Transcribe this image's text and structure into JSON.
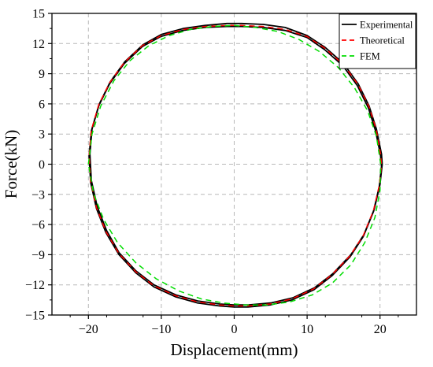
{
  "chart_data": {
    "type": "line",
    "title": "",
    "xlabel": "Displacement(mm)",
    "ylabel": "Force(kN)",
    "xlim": [
      -25,
      25
    ],
    "ylim": [
      -15,
      15
    ],
    "x_ticks": [
      -20,
      -10,
      0,
      10,
      20
    ],
    "y_ticks": [
      -15,
      -12,
      -9,
      -6,
      -3,
      0,
      3,
      6,
      9,
      12,
      15
    ],
    "grid": true,
    "grid_style": "dashed",
    "legend_position": "top-right",
    "series": [
      {
        "name": "Experimental",
        "color": "#000000",
        "dash": "solid",
        "loops": [
          {
            "x": [
              -19.8,
              -19.5,
              -18.5,
              -17.0,
              -15.0,
              -12.5,
              -10.0,
              -7.0,
              -4.0,
              -1.0,
              1.0,
              4.0,
              7.0,
              10.0,
              12.5,
              15.0,
              17.0,
              18.5,
              19.5,
              20.2,
              20.3,
              20.0,
              19.2,
              17.8,
              16.0,
              13.5,
              11.0,
              8.0,
              5.0,
              2.0,
              0.0,
              -2.0,
              -5.0,
              -8.0,
              -11.0,
              -13.5,
              -15.8,
              -17.5,
              -18.8,
              -19.6,
              -19.8
            ],
            "y": [
              1.0,
              3.5,
              6.0,
              8.2,
              10.2,
              11.9,
              12.9,
              13.5,
              13.8,
              14.0,
              14.0,
              13.9,
              13.6,
              12.8,
              11.6,
              10.0,
              8.0,
              5.8,
              3.5,
              1.0,
              0.0,
              -2.0,
              -4.5,
              -7.0,
              -9.0,
              -10.9,
              -12.3,
              -13.3,
              -13.8,
              -14.0,
              -14.0,
              -13.9,
              -13.6,
              -13.0,
              -12.0,
              -10.6,
              -8.8,
              -6.6,
              -4.2,
              -1.6,
              1.0
            ]
          },
          {
            "x": [
              -19.9,
              -19.6,
              -18.6,
              -17.1,
              -15.1,
              -12.6,
              -10.1,
              -7.1,
              -4.1,
              -1.0,
              1.0,
              4.0,
              7.0,
              10.0,
              12.4,
              14.9,
              16.9,
              18.4,
              19.4,
              20.1,
              20.2,
              19.9,
              19.1,
              17.7,
              15.9,
              13.4,
              10.9,
              7.9,
              4.9,
              1.9,
              0.0,
              -2.0,
              -5.0,
              -8.0,
              -11.0,
              -13.5,
              -15.8,
              -17.6,
              -18.9,
              -19.7,
              -19.9
            ],
            "y": [
              0.8,
              3.3,
              5.8,
              8.0,
              10.0,
              11.7,
              12.7,
              13.3,
              13.6,
              13.7,
              13.7,
              13.6,
              13.3,
              12.6,
              11.4,
              9.8,
              7.8,
              5.6,
              3.3,
              0.8,
              -0.2,
              -2.2,
              -4.7,
              -7.2,
              -9.2,
              -11.1,
              -12.5,
              -13.5,
              -14.0,
              -14.2,
              -14.2,
              -14.1,
              -13.8,
              -13.2,
              -12.2,
              -10.8,
              -9.0,
              -6.8,
              -4.4,
              -1.8,
              0.8
            ]
          }
        ]
      },
      {
        "name": "Theoretical",
        "color": "#ff0000",
        "dash": "dashed",
        "loops": [
          {
            "x": [
              -19.9,
              -19.6,
              -18.6,
              -17.1,
              -15.1,
              -12.6,
              -10.0,
              -7.0,
              -4.0,
              -1.0,
              1.0,
              4.0,
              7.0,
              10.0,
              12.5,
              15.0,
              17.0,
              18.5,
              19.5,
              20.1,
              20.2,
              19.9,
              19.1,
              17.7,
              15.9,
              13.4,
              10.9,
              7.9,
              4.9,
              1.9,
              0.0,
              -2.0,
              -5.0,
              -8.0,
              -11.0,
              -13.5,
              -15.8,
              -17.6,
              -18.9,
              -19.7,
              -19.9
            ],
            "y": [
              0.9,
              3.4,
              5.9,
              8.1,
              10.1,
              11.8,
              12.8,
              13.4,
              13.7,
              13.8,
              13.8,
              13.7,
              13.4,
              12.7,
              11.5,
              9.9,
              7.9,
              5.7,
              3.4,
              0.9,
              -0.1,
              -2.1,
              -4.6,
              -7.1,
              -9.1,
              -11.0,
              -12.4,
              -13.4,
              -13.9,
              -14.1,
              -14.1,
              -14.0,
              -13.7,
              -13.1,
              -12.1,
              -10.7,
              -8.9,
              -6.7,
              -4.3,
              -1.7,
              0.9
            ]
          }
        ]
      },
      {
        "name": "FEM",
        "color": "#00dd00",
        "dash": "dashed",
        "loops": [
          {
            "x": [
              -20.0,
              -19.5,
              -18.3,
              -16.5,
              -14.3,
              -11.7,
              -8.9,
              -6.0,
              -3.0,
              0.0,
              3.0,
              6.0,
              8.9,
              11.7,
              14.3,
              16.5,
              18.3,
              19.5,
              20.1,
              20.0,
              19.3,
              17.9,
              16.0,
              13.5,
              10.7,
              7.6,
              4.5,
              1.5,
              -1.5,
              -4.5,
              -7.6,
              -10.7,
              -13.5,
              -16.0,
              -17.9,
              -19.3,
              -20.0
            ],
            "y": [
              0.0,
              3.0,
              5.8,
              8.3,
              10.3,
              11.8,
              12.8,
              13.4,
              13.7,
              13.8,
              13.6,
              13.2,
              12.4,
              11.2,
              9.6,
              7.6,
              5.3,
              2.8,
              0.0,
              -2.6,
              -5.3,
              -7.8,
              -10.0,
              -11.8,
              -13.0,
              -13.7,
              -14.0,
              -14.0,
              -13.8,
              -13.4,
              -12.6,
              -11.4,
              -9.8,
              -7.8,
              -5.5,
              -2.9,
              0.0
            ]
          }
        ]
      }
    ]
  }
}
